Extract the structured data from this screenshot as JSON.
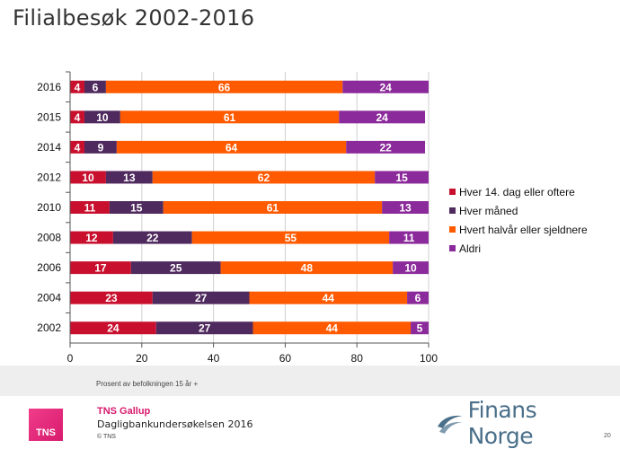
{
  "title": "Filialbesøk 2002-2016",
  "note": "Prosent av befolkningen 15 år +",
  "footer": {
    "brand": "TNS Gallup",
    "survey": "Dagligbankundersøkelsen 2016",
    "copyright": "© TNS",
    "tns_logo_text": "TNS",
    "finans_norge": "Finans Norge",
    "page_number": "20"
  },
  "colors": {
    "hver14": "#c8102e",
    "hvermaaned": "#4f2a5e",
    "halvaar": "#ff5a00",
    "aldri": "#8b2a9a"
  },
  "chart_data": {
    "type": "bar",
    "orientation": "horizontal",
    "stacked": true,
    "categories": [
      "2016",
      "2015",
      "2014",
      "2012",
      "2010",
      "2008",
      "2006",
      "2004",
      "2002"
    ],
    "series": [
      {
        "name": "Hver 14. dag eller oftere",
        "values": [
          4,
          4,
          4,
          10,
          11,
          12,
          17,
          23,
          24
        ]
      },
      {
        "name": "Hver måned",
        "values": [
          6,
          10,
          9,
          13,
          15,
          22,
          25,
          27,
          27
        ]
      },
      {
        "name": "Hvert halvår eller sjeldnere",
        "values": [
          66,
          61,
          64,
          62,
          61,
          55,
          48,
          44,
          44
        ]
      },
      {
        "name": "Aldri",
        "values": [
          24,
          24,
          22,
          15,
          13,
          11,
          10,
          6,
          5
        ]
      }
    ],
    "xlim": [
      0,
      100
    ],
    "xticks": [
      0,
      20,
      40,
      60,
      80,
      100
    ],
    "grid": true,
    "legend": "right"
  }
}
